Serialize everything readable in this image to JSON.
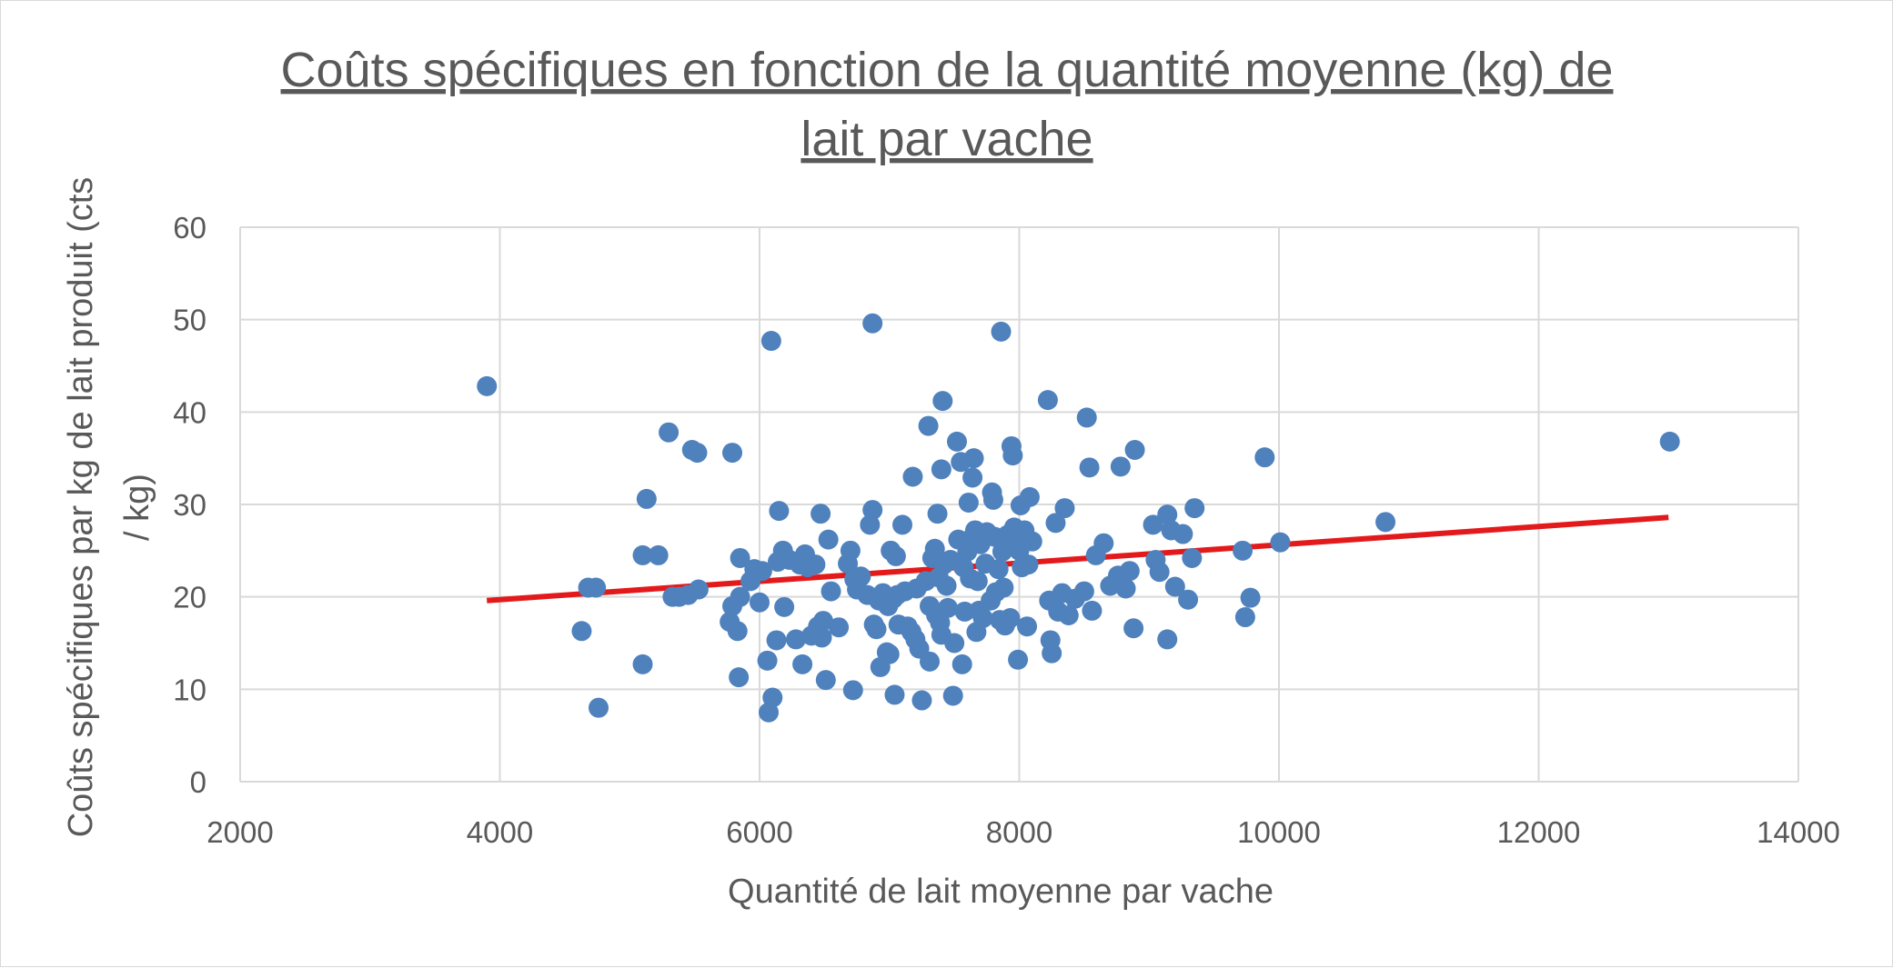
{
  "chart_data": {
    "type": "scatter",
    "title": "Coûts spécifiques en fonction de la quantité moyenne (kg) de lait par vache",
    "title_lines": [
      "Coûts spécifiques en fonction de la quantité moyenne (kg) de",
      "lait par vache"
    ],
    "xlabel": "Quantité de lait moyenne par vache",
    "ylabel": "Coûts spécifiques par kg de lait produit (cts / kg)",
    "ylabel_lines": [
      "Coûts spécifiques par kg de lait produit (cts",
      "/ kg)"
    ],
    "xlim": [
      2000,
      14000
    ],
    "ylim": [
      0,
      60
    ],
    "x_ticks": [
      "2000",
      "4000",
      "6000",
      "8000",
      "10000",
      "12000",
      "14000"
    ],
    "y_ticks": [
      "0",
      "10",
      "20",
      "30",
      "40",
      "50",
      "60"
    ],
    "grid": true,
    "legend": "none",
    "point_color": "#4f81bd",
    "trendline_color": "#e31a1c",
    "trendline": {
      "x": [
        3900,
        13000
      ],
      "y": [
        19.6,
        28.6
      ]
    },
    "points": [
      [
        3900,
        42.8
      ],
      [
        4630,
        16.3
      ],
      [
        4680,
        21.0
      ],
      [
        4740,
        21.0
      ],
      [
        4760,
        8.0
      ],
      [
        5100,
        12.7
      ],
      [
        5100,
        24.5
      ],
      [
        5130,
        30.6
      ],
      [
        5220,
        24.5
      ],
      [
        5300,
        37.8
      ],
      [
        5330,
        20.0
      ],
      [
        5380,
        20.0
      ],
      [
        5450,
        20.2
      ],
      [
        5480,
        35.9
      ],
      [
        5520,
        35.6
      ],
      [
        5530,
        20.8
      ],
      [
        5770,
        17.3
      ],
      [
        5790,
        19.0
      ],
      [
        5790,
        35.6
      ],
      [
        5830,
        16.3
      ],
      [
        5840,
        11.3
      ],
      [
        5850,
        24.2
      ],
      [
        5850,
        20.0
      ],
      [
        5930,
        21.7
      ],
      [
        5960,
        23.0
      ],
      [
        6000,
        19.4
      ],
      [
        6020,
        22.8
      ],
      [
        6060,
        13.1
      ],
      [
        6070,
        7.5
      ],
      [
        6090,
        47.7
      ],
      [
        6100,
        9.1
      ],
      [
        6130,
        15.3
      ],
      [
        6140,
        23.8
      ],
      [
        6150,
        29.3
      ],
      [
        6180,
        25.0
      ],
      [
        6190,
        18.9
      ],
      [
        6230,
        24.0
      ],
      [
        6280,
        15.4
      ],
      [
        6310,
        23.5
      ],
      [
        6330,
        12.7
      ],
      [
        6350,
        24.6
      ],
      [
        6370,
        23.2
      ],
      [
        6400,
        15.8
      ],
      [
        6430,
        23.5
      ],
      [
        6450,
        16.8
      ],
      [
        6470,
        29.0
      ],
      [
        6480,
        15.6
      ],
      [
        6490,
        17.4
      ],
      [
        6510,
        11.0
      ],
      [
        6530,
        26.2
      ],
      [
        6550,
        20.6
      ],
      [
        6610,
        16.7
      ],
      [
        6680,
        23.6
      ],
      [
        6700,
        25.0
      ],
      [
        6720,
        9.9
      ],
      [
        6730,
        21.9
      ],
      [
        6750,
        20.8
      ],
      [
        6780,
        22.2
      ],
      [
        6830,
        20.2
      ],
      [
        6850,
        27.8
      ],
      [
        6870,
        29.4
      ],
      [
        6870,
        49.6
      ],
      [
        6880,
        17.0
      ],
      [
        6900,
        16.5
      ],
      [
        6920,
        19.6
      ],
      [
        6930,
        12.4
      ],
      [
        6950,
        20.4
      ],
      [
        6980,
        14.0
      ],
      [
        6990,
        19.0
      ],
      [
        7000,
        13.8
      ],
      [
        7010,
        25.0
      ],
      [
        7030,
        19.8
      ],
      [
        7040,
        9.4
      ],
      [
        7050,
        24.4
      ],
      [
        7060,
        20.2
      ],
      [
        7070,
        17.0
      ],
      [
        7100,
        27.8
      ],
      [
        7120,
        20.6
      ],
      [
        7140,
        16.8
      ],
      [
        7170,
        16.2
      ],
      [
        7180,
        33.0
      ],
      [
        7200,
        15.4
      ],
      [
        7210,
        20.9
      ],
      [
        7230,
        14.4
      ],
      [
        7250,
        8.8
      ],
      [
        7280,
        21.7
      ],
      [
        7300,
        38.5
      ],
      [
        7310,
        19.0
      ],
      [
        7310,
        13.0
      ],
      [
        7330,
        24.2
      ],
      [
        7350,
        25.2
      ],
      [
        7360,
        18.0
      ],
      [
        7370,
        29.0
      ],
      [
        7380,
        22.1
      ],
      [
        7390,
        17.2
      ],
      [
        7400,
        15.9
      ],
      [
        7400,
        33.8
      ],
      [
        7410,
        41.2
      ],
      [
        7420,
        23.5
      ],
      [
        7440,
        21.2
      ],
      [
        7450,
        18.8
      ],
      [
        7470,
        24.0
      ],
      [
        7490,
        9.3
      ],
      [
        7500,
        15.0
      ],
      [
        7520,
        36.8
      ],
      [
        7530,
        26.2
      ],
      [
        7550,
        34.6
      ],
      [
        7560,
        12.7
      ],
      [
        7570,
        23.2
      ],
      [
        7580,
        18.4
      ],
      [
        7600,
        24.9
      ],
      [
        7610,
        30.2
      ],
      [
        7620,
        22.0
      ],
      [
        7630,
        26.3
      ],
      [
        7640,
        32.9
      ],
      [
        7650,
        35.0
      ],
      [
        7660,
        27.2
      ],
      [
        7670,
        16.2
      ],
      [
        7680,
        21.7
      ],
      [
        7690,
        18.5
      ],
      [
        7700,
        25.7
      ],
      [
        7720,
        17.7
      ],
      [
        7740,
        23.6
      ],
      [
        7750,
        27.0
      ],
      [
        7780,
        19.6
      ],
      [
        7790,
        31.3
      ],
      [
        7800,
        30.5
      ],
      [
        7810,
        26.5
      ],
      [
        7820,
        20.5
      ],
      [
        7840,
        23.0
      ],
      [
        7850,
        17.5
      ],
      [
        7860,
        48.7
      ],
      [
        7870,
        24.9
      ],
      [
        7880,
        21.0
      ],
      [
        7890,
        16.9
      ],
      [
        7910,
        26.7
      ],
      [
        7930,
        17.7
      ],
      [
        7940,
        36.3
      ],
      [
        7950,
        35.3
      ],
      [
        7960,
        27.5
      ],
      [
        7980,
        26.3
      ],
      [
        7990,
        13.2
      ],
      [
        8000,
        25.0
      ],
      [
        8010,
        29.9
      ],
      [
        8020,
        23.2
      ],
      [
        8040,
        27.2
      ],
      [
        8060,
        16.8
      ],
      [
        8070,
        23.5
      ],
      [
        8080,
        30.8
      ],
      [
        8100,
        26.0
      ],
      [
        8220,
        41.3
      ],
      [
        8230,
        19.6
      ],
      [
        8240,
        15.3
      ],
      [
        8250,
        13.9
      ],
      [
        8280,
        28.0
      ],
      [
        8300,
        18.4
      ],
      [
        8330,
        20.4
      ],
      [
        8350,
        29.6
      ],
      [
        8380,
        18.0
      ],
      [
        8430,
        19.8
      ],
      [
        8500,
        20.6
      ],
      [
        8520,
        39.4
      ],
      [
        8540,
        34.0
      ],
      [
        8560,
        18.5
      ],
      [
        8590,
        24.5
      ],
      [
        8650,
        25.8
      ],
      [
        8700,
        21.2
      ],
      [
        8760,
        22.3
      ],
      [
        8780,
        34.1
      ],
      [
        8820,
        20.9
      ],
      [
        8850,
        22.8
      ],
      [
        8880,
        16.6
      ],
      [
        8890,
        35.9
      ],
      [
        9030,
        27.8
      ],
      [
        9050,
        24.0
      ],
      [
        9080,
        22.7
      ],
      [
        9140,
        15.4
      ],
      [
        9140,
        28.9
      ],
      [
        9170,
        27.2
      ],
      [
        9200,
        21.1
      ],
      [
        9260,
        26.8
      ],
      [
        9300,
        19.7
      ],
      [
        9330,
        24.2
      ],
      [
        9350,
        29.6
      ],
      [
        9720,
        25.0
      ],
      [
        9740,
        17.8
      ],
      [
        9780,
        19.9
      ],
      [
        9890,
        35.1
      ],
      [
        10010,
        25.9
      ],
      [
        10820,
        28.1
      ],
      [
        13010,
        36.8
      ]
    ]
  }
}
